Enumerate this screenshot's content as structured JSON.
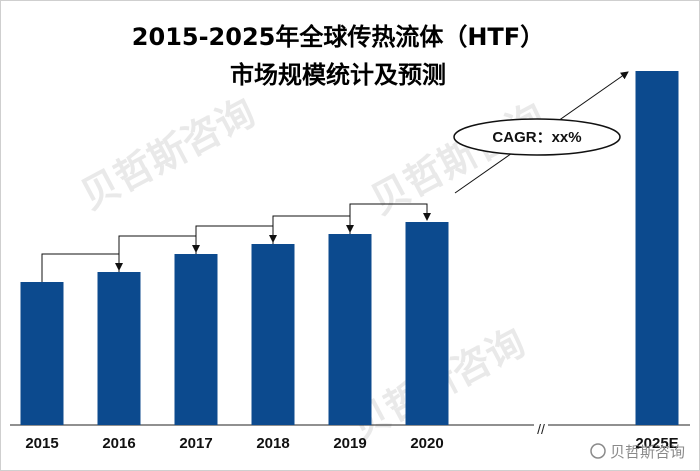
{
  "chart_data": {
    "type": "bar",
    "title_line1": "2015-2025年全球传热流体（HTF）",
    "title_line2": "市场规模统计及预测",
    "categories": [
      "2015",
      "2016",
      "2017",
      "2018",
      "2019",
      "2020",
      "2025E"
    ],
    "values": [
      143,
      153,
      171,
      181,
      191,
      203,
      354
    ],
    "ylim": [
      0,
      360
    ],
    "grid": false,
    "legend": "none",
    "bar_color": "#0c4a8e",
    "annotation": "CAGR：xx%",
    "axis_break": "//",
    "xlabel": "",
    "ylabel": ""
  },
  "watermarks": {
    "brand": "贝哲斯咨询",
    "corner": "贝哲斯咨询"
  }
}
